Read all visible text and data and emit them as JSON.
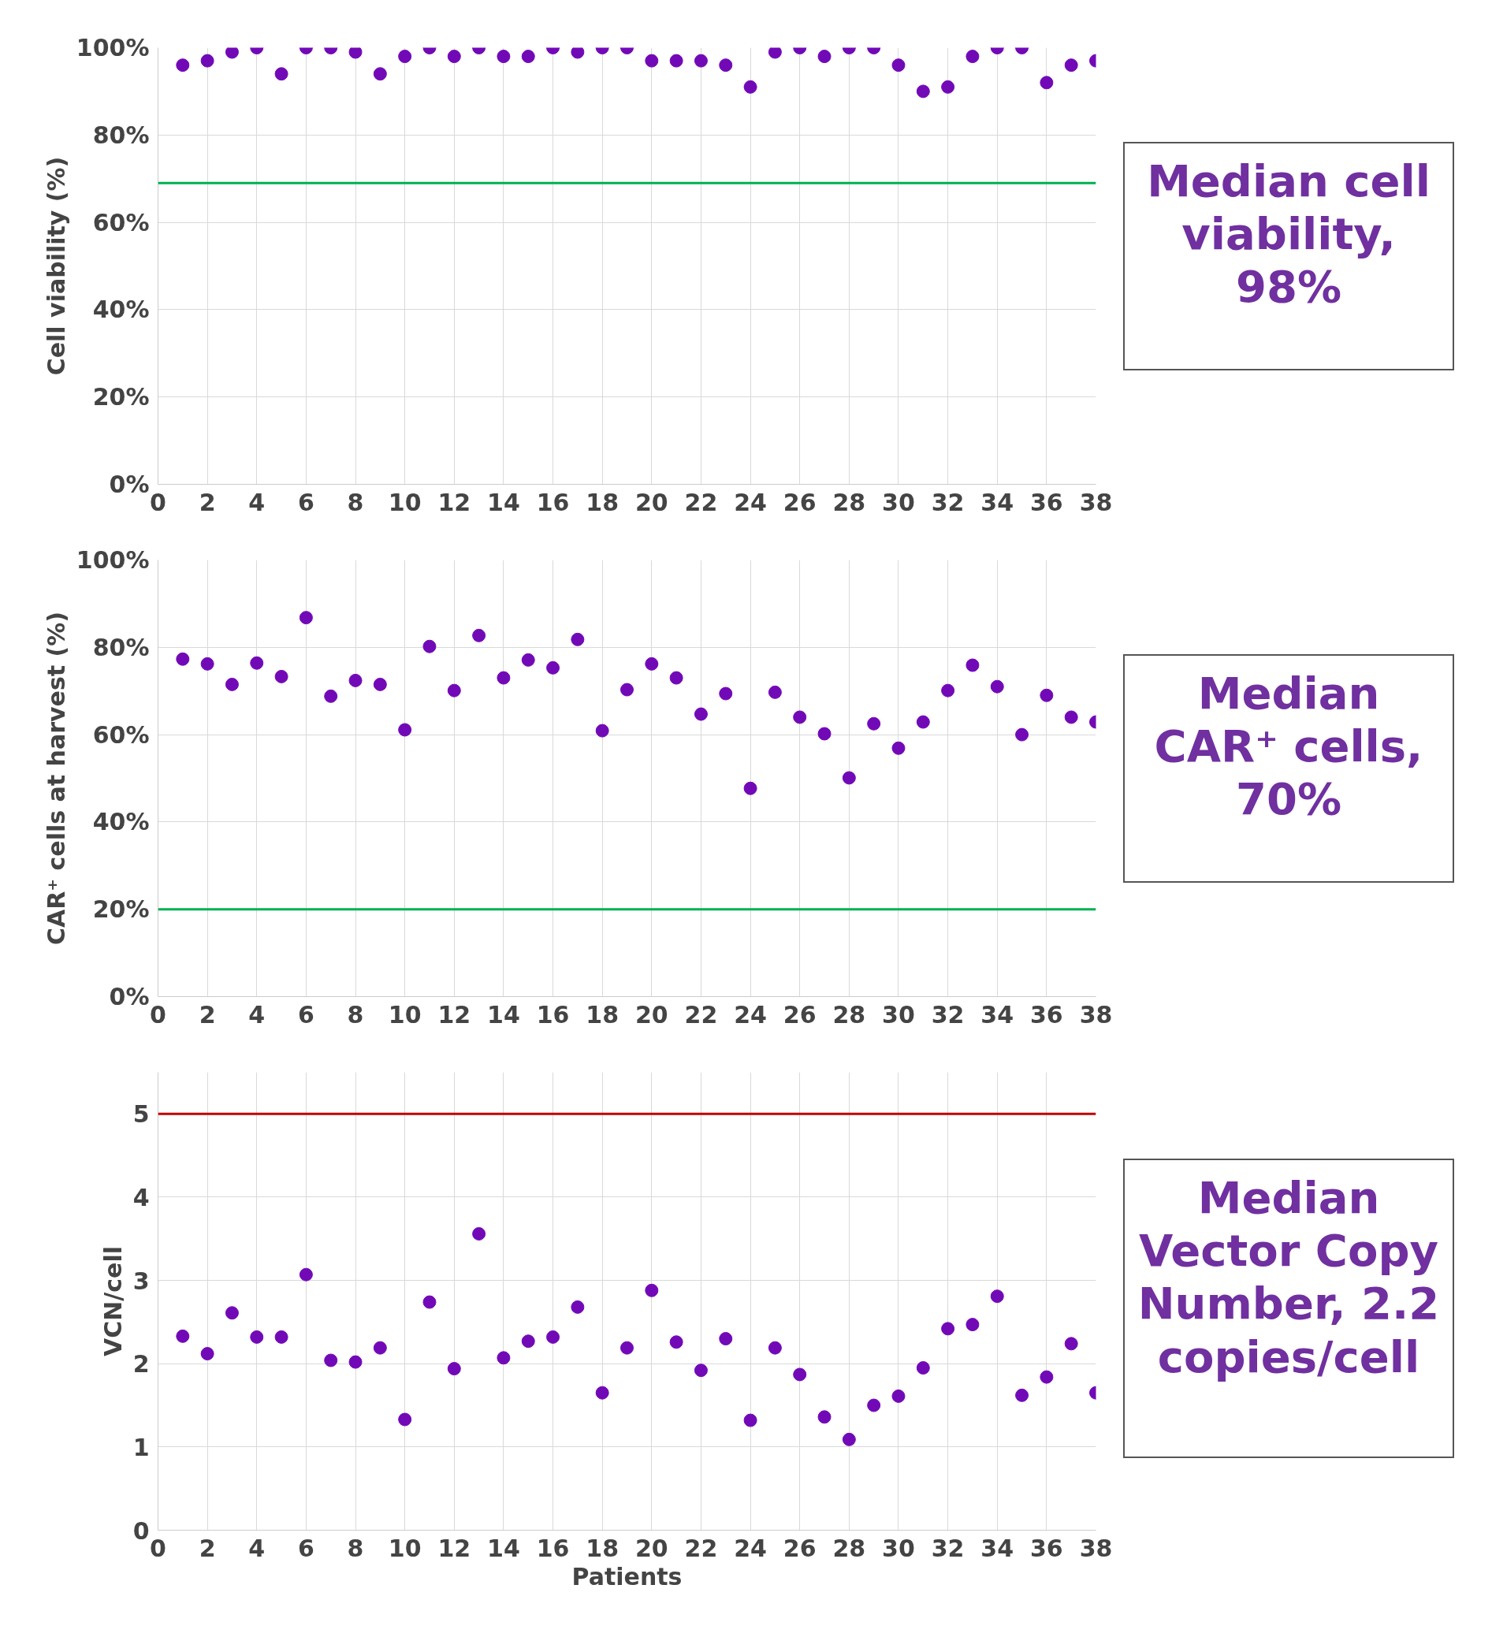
{
  "chart_data": [
    {
      "type": "scatter",
      "ylabel": "Cell viability (%)",
      "marker": "circle",
      "grid": true,
      "x": [
        1,
        2,
        3,
        4,
        5,
        6,
        7,
        8,
        9,
        10,
        11,
        12,
        13,
        14,
        15,
        16,
        17,
        18,
        19,
        20,
        21,
        22,
        23,
        24,
        25,
        26,
        27,
        28,
        29,
        30,
        31,
        32,
        33,
        34,
        35,
        36,
        37,
        38
      ],
      "series": [
        {
          "color": "#7209b7",
          "values": [
            96,
            97,
            99,
            100,
            94,
            100,
            100,
            99,
            94,
            98,
            100,
            98,
            100,
            98,
            98,
            100,
            99,
            100,
            100,
            97,
            97,
            97,
            96,
            91,
            99,
            100,
            98,
            100,
            100,
            96,
            90,
            91,
            98,
            100,
            100,
            92,
            96,
            97
          ]
        }
      ],
      "xlim": [
        0,
        38
      ],
      "xticks": [
        0,
        2,
        4,
        6,
        8,
        10,
        12,
        14,
        16,
        18,
        20,
        22,
        24,
        26,
        28,
        30,
        32,
        34,
        36,
        38
      ],
      "ylim": [
        0,
        100
      ],
      "yticks": [
        {
          "value": 0,
          "label": "0%"
        },
        {
          "value": 20,
          "label": "20%"
        },
        {
          "value": 40,
          "label": "40%"
        },
        {
          "value": 60,
          "label": "60%"
        },
        {
          "value": 80,
          "label": "80%"
        },
        {
          "value": 100,
          "label": "100%"
        }
      ],
      "ref_lines": [
        {
          "axis": "y",
          "value": 69,
          "color": "#00b050"
        }
      ],
      "annotations": [
        "Median cell viability, 98%"
      ]
    },
    {
      "type": "scatter",
      "ylabel": "CAR⁺ cells at harvest (%)",
      "marker": "circle",
      "grid": true,
      "x": [
        1,
        2,
        3,
        4,
        5,
        6,
        7,
        8,
        9,
        10,
        11,
        12,
        13,
        14,
        15,
        16,
        17,
        18,
        19,
        20,
        21,
        22,
        23,
        24,
        25,
        26,
        27,
        28,
        29,
        30,
        31,
        32,
        33,
        34,
        35,
        36,
        37,
        38
      ],
      "series": [
        {
          "color": "#7209b7",
          "values": [
            77.3,
            76.2,
            71.5,
            76.4,
            73.3,
            86.8,
            68.8,
            72.4,
            71.5,
            61.1,
            80.2,
            70.1,
            82.7,
            73,
            77.1,
            75.3,
            81.8,
            60.9,
            70.3,
            76.2,
            73,
            64.7,
            69.4,
            47.7,
            69.7,
            64,
            60.2,
            50.1,
            62.5,
            56.9,
            62.9,
            70.1,
            75.9,
            71,
            60,
            69,
            64,
            62.9
          ]
        }
      ],
      "xlim": [
        0,
        38
      ],
      "xticks": [
        0,
        2,
        4,
        6,
        8,
        10,
        12,
        14,
        16,
        18,
        20,
        22,
        24,
        26,
        28,
        30,
        32,
        34,
        36,
        38
      ],
      "ylim": [
        0,
        100
      ],
      "yticks": [
        {
          "value": 0,
          "label": "0%"
        },
        {
          "value": 20,
          "label": "20%"
        },
        {
          "value": 40,
          "label": "40%"
        },
        {
          "value": 60,
          "label": "60%"
        },
        {
          "value": 80,
          "label": "80%"
        },
        {
          "value": 100,
          "label": "100%"
        }
      ],
      "ref_lines": [
        {
          "axis": "y",
          "value": 20,
          "color": "#00b050"
        }
      ],
      "annotations": [
        "Median CAR⁺ cells, 70%"
      ]
    },
    {
      "type": "scatter",
      "ylabel": "VCN/cell",
      "xlabel": "Patients",
      "marker": "circle",
      "grid": true,
      "x": [
        1,
        2,
        3,
        4,
        5,
        6,
        7,
        8,
        9,
        10,
        11,
        12,
        13,
        14,
        15,
        16,
        17,
        18,
        19,
        20,
        21,
        22,
        23,
        24,
        25,
        26,
        27,
        28,
        29,
        30,
        31,
        32,
        33,
        34,
        35,
        36,
        37,
        38
      ],
      "series": [
        {
          "color": "#7209b7",
          "values": [
            2.33,
            2.12,
            2.61,
            2.32,
            2.32,
            3.07,
            2.04,
            2.02,
            2.19,
            1.33,
            2.74,
            1.94,
            3.56,
            2.07,
            2.27,
            2.32,
            2.68,
            1.65,
            2.19,
            2.88,
            2.26,
            1.92,
            2.3,
            1.32,
            2.19,
            1.87,
            1.36,
            1.09,
            1.5,
            1.61,
            1.95,
            2.42,
            2.47,
            2.81,
            1.62,
            1.84,
            2.24,
            1.65
          ]
        }
      ],
      "xlim": [
        0,
        38
      ],
      "xticks": [
        0,
        2,
        4,
        6,
        8,
        10,
        12,
        14,
        16,
        18,
        20,
        22,
        24,
        26,
        28,
        30,
        32,
        34,
        36,
        38
      ],
      "ylim": [
        0,
        5.5
      ],
      "yticks": [
        0,
        1,
        2,
        3,
        4,
        5
      ],
      "ref_lines": [
        {
          "axis": "y",
          "value": 5,
          "color": "#c00000"
        }
      ],
      "annotations": [
        "Median Vector Copy Number, 2.2 copies/cell"
      ]
    }
  ]
}
